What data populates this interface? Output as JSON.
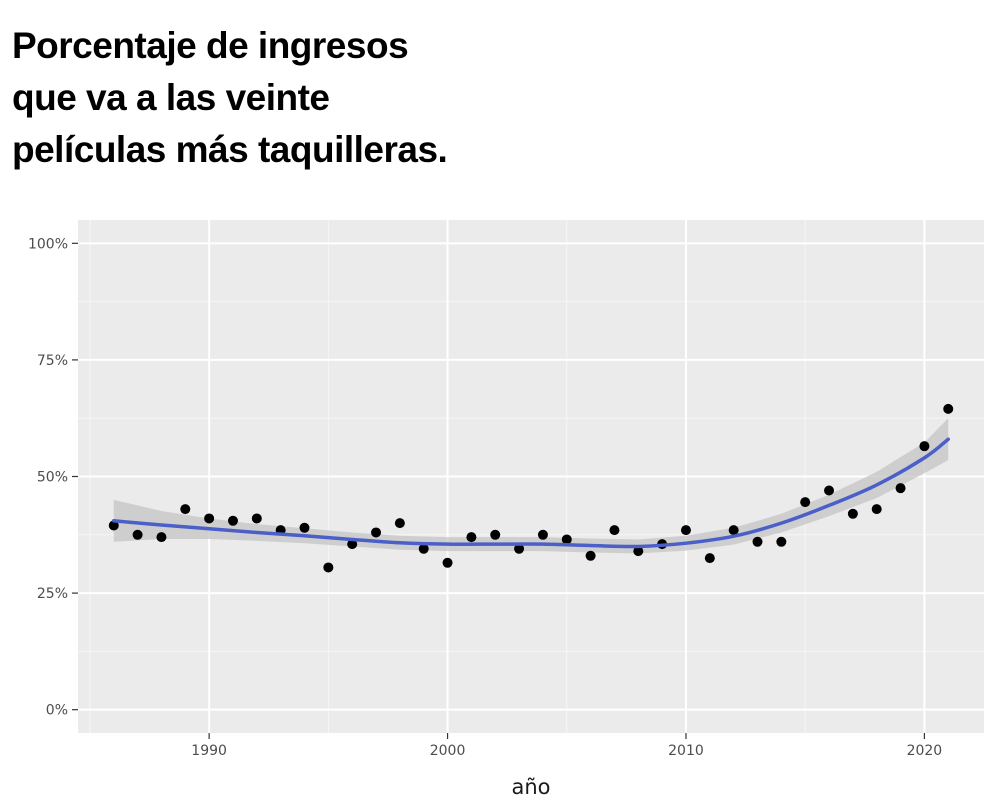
{
  "chart_data": {
    "type": "scatter",
    "title_lines": [
      "Porcentaje de ingresos",
      "que va a las veinte",
      "películas más taquilleras."
    ],
    "xlabel": "año",
    "ylabel": "",
    "xlim": [
      1984.5,
      2022.5
    ],
    "ylim": [
      -5,
      105
    ],
    "x_ticks": [
      1990,
      2000,
      2010,
      2020
    ],
    "x_tick_labels": [
      "1990",
      "2000",
      "2010",
      "2020"
    ],
    "y_ticks": [
      0,
      25,
      50,
      75,
      100
    ],
    "y_tick_labels": [
      "0%",
      "25%",
      "50%",
      "75%",
      "100%"
    ],
    "points": {
      "x": [
        1986,
        1987,
        1988,
        1989,
        1990,
        1991,
        1992,
        1993,
        1994,
        1995,
        1996,
        1997,
        1998,
        1999,
        2000,
        2001,
        2002,
        2003,
        2004,
        2005,
        2006,
        2007,
        2008,
        2009,
        2010,
        2011,
        2012,
        2013,
        2014,
        2015,
        2016,
        2017,
        2018,
        2019,
        2020,
        2021
      ],
      "y": [
        39.5,
        37.5,
        37,
        43,
        41,
        40.5,
        41,
        38.5,
        39,
        30.5,
        35.5,
        38,
        40,
        34.5,
        31.5,
        37,
        37.5,
        34.5,
        37.5,
        36.5,
        33,
        38.5,
        34,
        35.5,
        38.5,
        32.5,
        38.5,
        36,
        36,
        44.5,
        47,
        42,
        43,
        47.5,
        56.5,
        64.5
      ],
      "color": "#000000"
    },
    "smooth": {
      "x": [
        1986,
        1988,
        1990,
        1992,
        1994,
        1996,
        1998,
        2000,
        2002,
        2004,
        2006,
        2008,
        2010,
        2012,
        2014,
        2016,
        2018,
        2020,
        2021
      ],
      "y": [
        40.5,
        39.6,
        38.8,
        38,
        37.3,
        36.5,
        35.8,
        35.5,
        35.5,
        35.5,
        35.2,
        35,
        35.7,
        37.2,
        40,
        43.8,
        48.2,
        54,
        58
      ],
      "se_half_width": [
        4.5,
        3,
        2.2,
        1.8,
        1.6,
        1.5,
        1.5,
        1.5,
        1.5,
        1.5,
        1.5,
        1.5,
        1.6,
        1.8,
        2,
        2.3,
        2.8,
        3.3,
        4.5
      ],
      "color": "#4a5fc8",
      "band_color": "#c4c4c4"
    },
    "panel_background": "#ebebeb",
    "grid": true
  }
}
